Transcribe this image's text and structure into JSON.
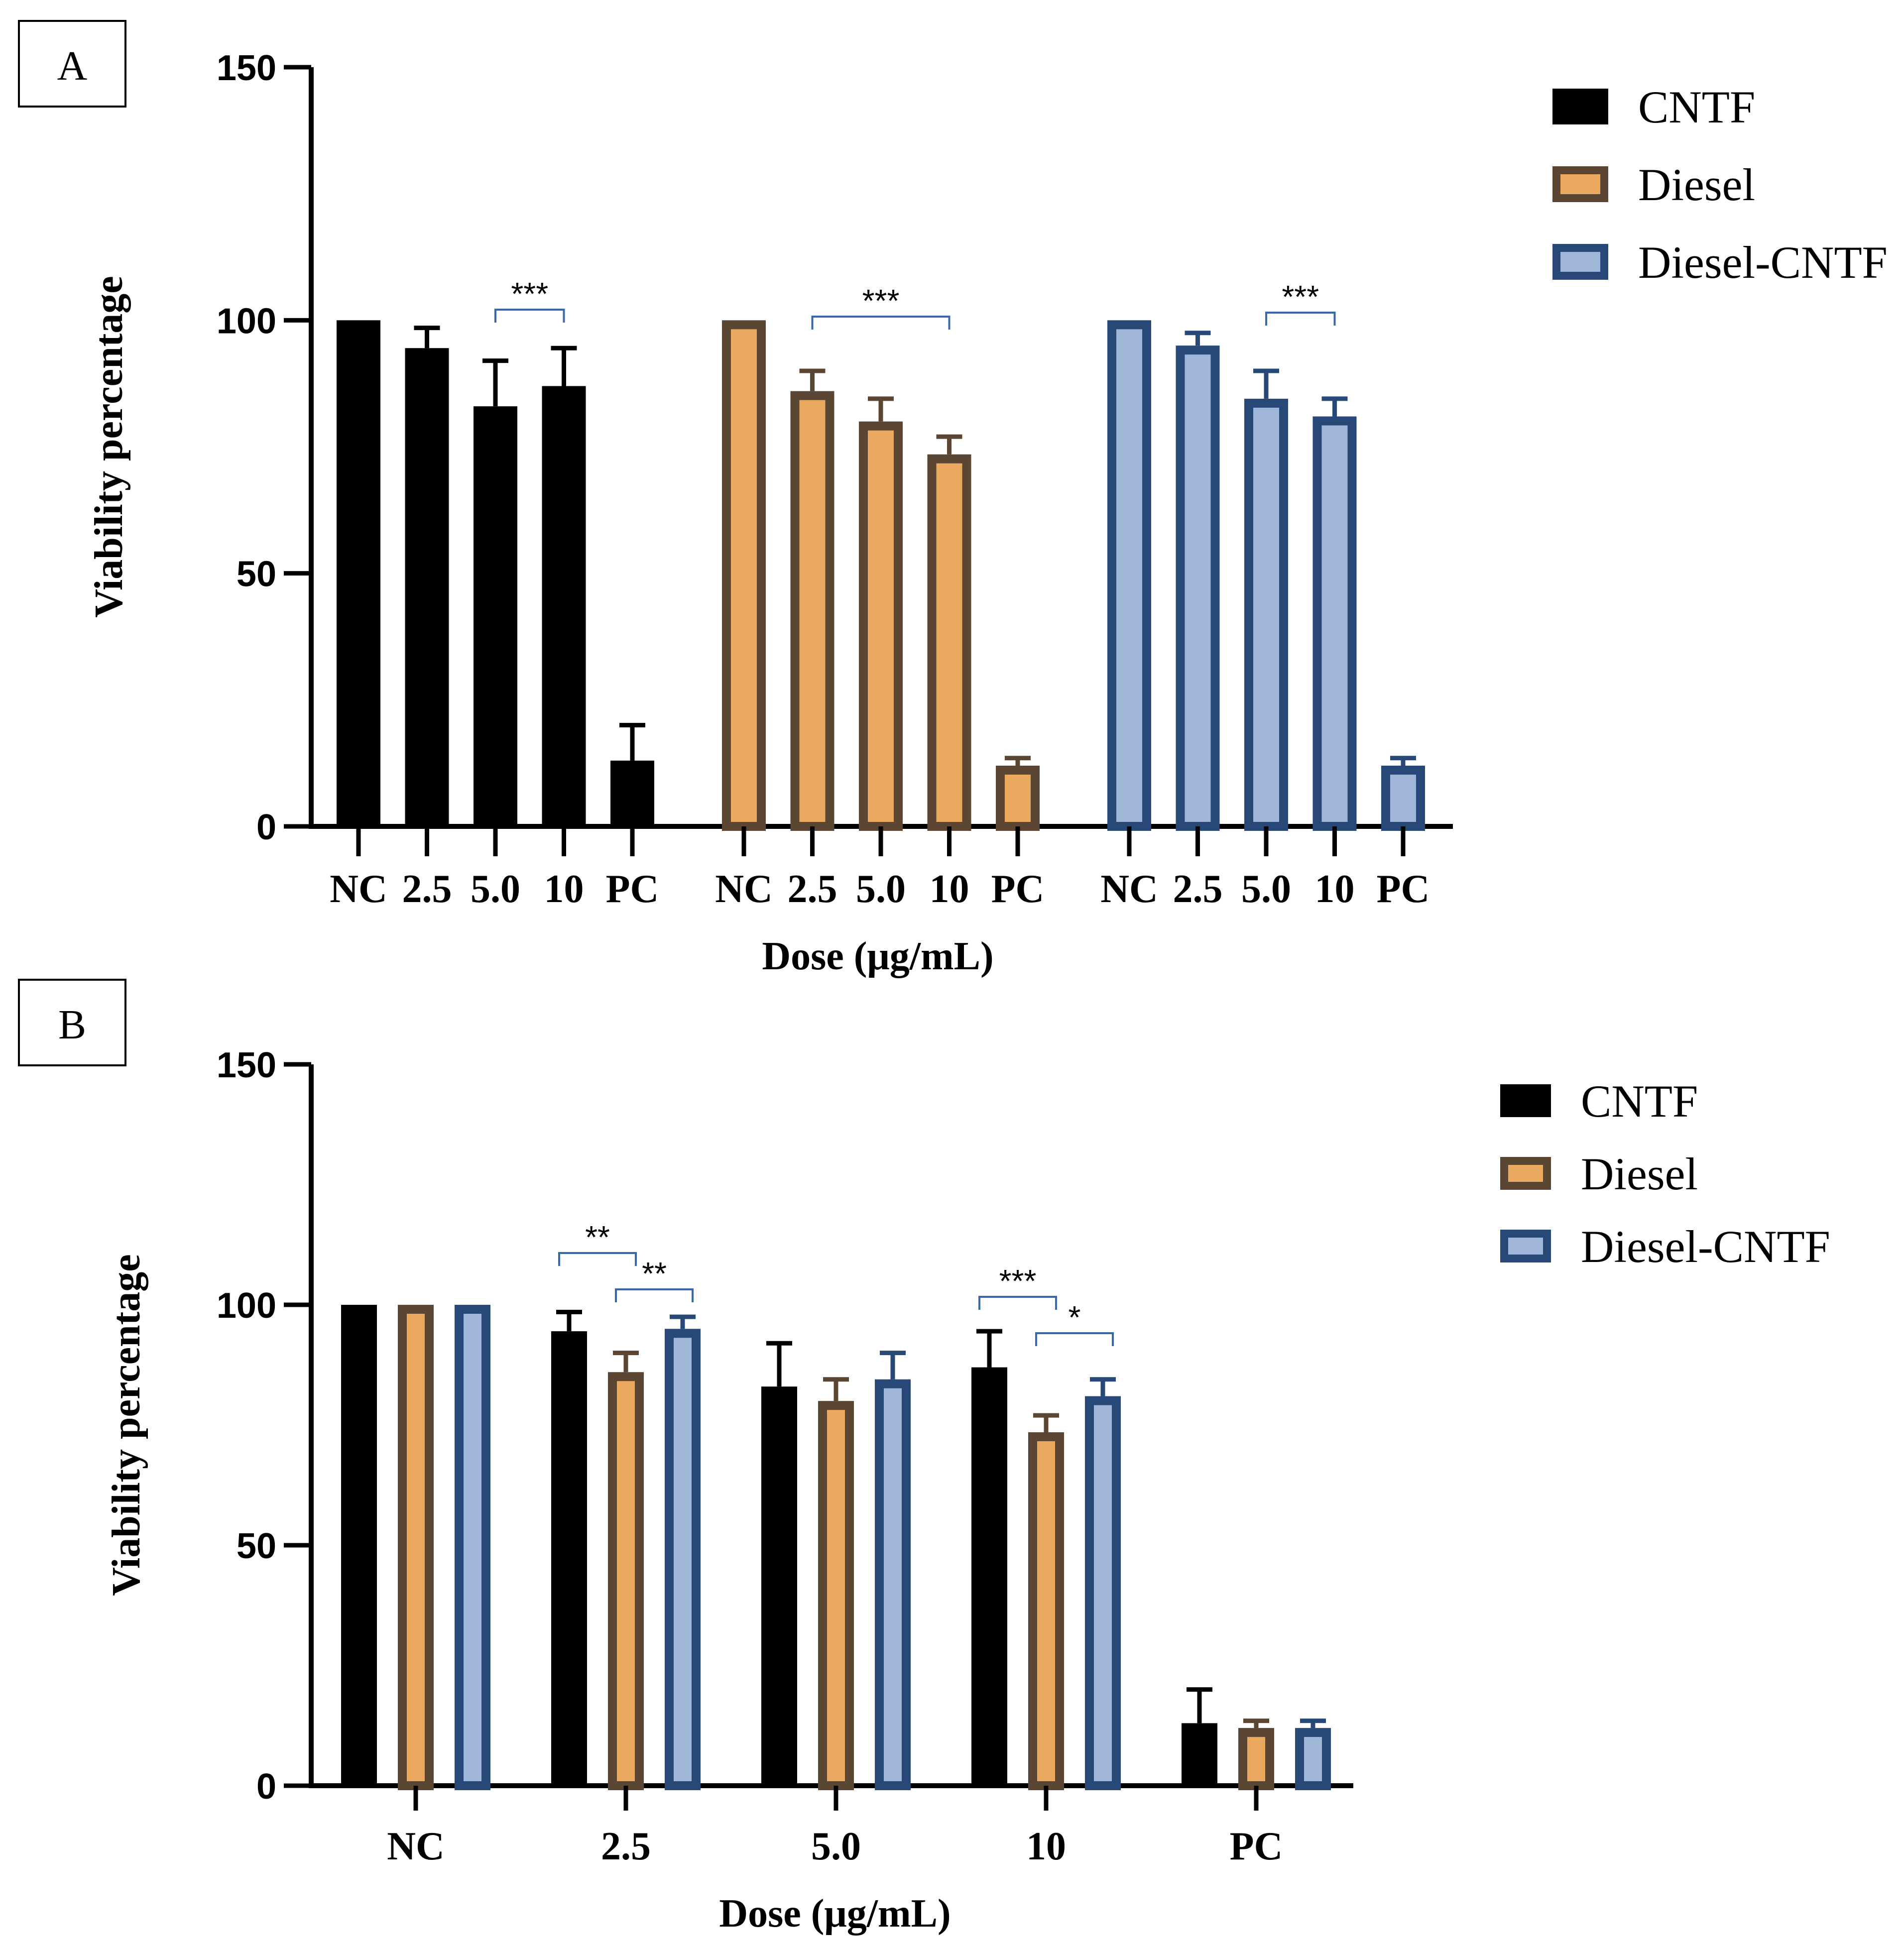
{
  "panels": [
    {
      "label": "A"
    },
    {
      "label": "B"
    }
  ],
  "colors": {
    "CNTF": {
      "fill": "#000000",
      "stroke": "#000000"
    },
    "Diesel": {
      "fill": "#eba85f",
      "stroke": "#5a4632"
    },
    "Diesel-CNTF": {
      "fill": "#9fb6d8",
      "stroke": "#284878"
    },
    "bracket": "#3b68a8"
  },
  "chart_data": [
    {
      "id": "A",
      "type": "bar",
      "title": "",
      "xlabel": "Dose (μg/mL)",
      "ylabel": "Viability percentage",
      "ylim": [
        0,
        150
      ],
      "yticks": [
        0,
        50,
        100,
        150
      ],
      "legend_position": "top-right",
      "legend": [
        "CNTF",
        "Diesel",
        "Diesel-CNTF"
      ],
      "grid": false,
      "groups": [
        {
          "series": "CNTF",
          "categories": [
            "NC",
            "2.5",
            "5.0",
            "10",
            "PC"
          ],
          "values": [
            100,
            94.5,
            83,
            87,
            13
          ],
          "errors": [
            0,
            4,
            9,
            7.5,
            7
          ]
        },
        {
          "series": "Diesel",
          "categories": [
            "NC",
            "2.5",
            "5.0",
            "10",
            "PC"
          ],
          "values": [
            100,
            86,
            80,
            73.5,
            12
          ],
          "errors": [
            0,
            4,
            4.5,
            3.5,
            1.5
          ]
        },
        {
          "series": "Diesel-CNTF",
          "categories": [
            "NC",
            "2.5",
            "5.0",
            "10",
            "PC"
          ],
          "values": [
            100,
            95,
            84.5,
            81,
            12
          ],
          "errors": [
            0,
            2.5,
            5.5,
            3.5,
            1.5
          ]
        }
      ],
      "significance": [
        {
          "group": 0,
          "from": 2,
          "to": 3,
          "label": "***"
        },
        {
          "group": 1,
          "from": 1,
          "to": 3,
          "label": "***"
        },
        {
          "group": 2,
          "from": 2,
          "to": 3,
          "label": "***"
        }
      ]
    },
    {
      "id": "B",
      "type": "bar",
      "title": "",
      "xlabel": "Dose (μg/mL)",
      "ylabel": "Viability percentage",
      "ylim": [
        0,
        150
      ],
      "yticks": [
        0,
        50,
        100,
        150
      ],
      "legend_position": "top-right",
      "legend": [
        "CNTF",
        "Diesel",
        "Diesel-CNTF"
      ],
      "grid": false,
      "categories": [
        "NC",
        "2.5",
        "5.0",
        "10",
        "PC"
      ],
      "series": [
        {
          "name": "CNTF",
          "values": [
            100,
            94.5,
            83,
            87,
            13
          ],
          "errors": [
            0,
            4,
            9,
            7.5,
            7
          ]
        },
        {
          "name": "Diesel",
          "values": [
            100,
            86,
            80,
            73.5,
            12
          ],
          "errors": [
            0,
            4,
            4.5,
            3.5,
            1.5
          ]
        },
        {
          "name": "Diesel-CNTF",
          "values": [
            100,
            95,
            84.5,
            81,
            12
          ],
          "errors": [
            0,
            2.5,
            5.5,
            3.5,
            1.5
          ]
        }
      ],
      "significance": [
        {
          "category": 1,
          "from_series": 0,
          "to_series": 1,
          "label": "**"
        },
        {
          "category": 1,
          "from_series": 1,
          "to_series": 2,
          "label": "**"
        },
        {
          "category": 3,
          "from_series": 0,
          "to_series": 1,
          "label": "***"
        },
        {
          "category": 3,
          "from_series": 1,
          "to_series": 2,
          "label": "*"
        }
      ]
    }
  ]
}
